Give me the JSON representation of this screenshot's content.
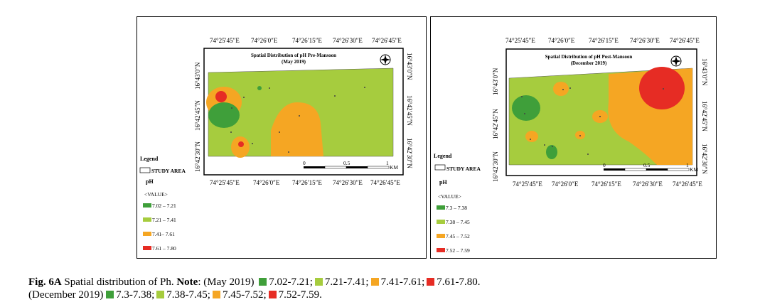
{
  "colors": {
    "dark_green": "#3f9f3a",
    "light_green": "#a6cc3e",
    "orange": "#f5a623",
    "red": "#e62c24"
  },
  "left_map": {
    "title_line1": "Spatial Distribution of pH Pre-Mansoon",
    "title_line2": "(May 2019)",
    "top_ticks": [
      "74°25′45″E",
      "74°26′0″E",
      "74°26′15″E",
      "74°26′30″E",
      "74°26′45″E"
    ],
    "bottom_ticks": [
      "74°25′45″E",
      "74°26′0″E",
      "74°26′15″E",
      "74°26′30″E",
      "74°26′45″E"
    ],
    "left_ticks": [
      "16°43′0″N",
      "16°42′45″N",
      "16°42′30″N"
    ],
    "right_ticks": [
      "16°43′0″N",
      "16°42′45″N",
      "16°42′30″N"
    ],
    "scale_labels": [
      "0",
      "0.5",
      "1",
      "KM"
    ],
    "legend": {
      "title": "Legend",
      "study_area": "STUDY AREA",
      "variable": "pH",
      "value_label": "<VALUE>",
      "classes": [
        {
          "label": "7.02 – 7.21",
          "color": "#3f9f3a"
        },
        {
          "label": "7.21 – 7.41",
          "color": "#a6cc3e"
        },
        {
          "label": "7.41– 7.61",
          "color": "#f5a623"
        },
        {
          "label": "7.61 – 7.80",
          "color": "#e62c24"
        }
      ]
    }
  },
  "right_map": {
    "title_line1": "Spatial Distribution of pH Post-Mansoon",
    "title_line2": "(December 2019)",
    "top_ticks": [
      "74°25′45″E",
      "74°26′0″E",
      "74°26′15″E",
      "74°26′30″E",
      "74°26′45″E"
    ],
    "bottom_ticks": [
      "74°25′45″E",
      "74°26′0″E",
      "74°26′15″E",
      "74°26′30″E",
      "74°26′45″E"
    ],
    "left_ticks": [
      "16°43′0″N",
      "16°42′45″N",
      "16°42′30″N"
    ],
    "right_ticks": [
      "16°43′0″N",
      "16°42′45″N",
      "16°42′30″N"
    ],
    "scale_labels": [
      "0",
      "0.5",
      "1",
      "KM"
    ],
    "legend": {
      "title": "Legend",
      "study_area": "STUDY AREA",
      "variable": "pH",
      "value_label": "<VALUE>",
      "classes": [
        {
          "label": "7.3 – 7.38",
          "color": "#3f9f3a"
        },
        {
          "label": "7.38 – 7.45",
          "color": "#a6cc3e"
        },
        {
          "label": "7.45 – 7.52",
          "color": "#f5a623"
        },
        {
          "label": "7.52 – 7.59",
          "color": "#e62c24"
        }
      ]
    }
  },
  "caption": {
    "fig_label": "Fig. 6A",
    "text": " Spatial distribution of Ph. ",
    "note_label": "Note",
    "line1_prefix": ": (May 2019) ",
    "line1_items": [
      "7.02-7.21;",
      "7.21-7.41;",
      "7.41-7.61;",
      "7.61-7.80."
    ],
    "line2_prefix": "(December 2019) ",
    "line2_items": [
      "7.3-7.38;",
      "7.38-7.45;",
      "7.45-7.52;",
      "7.52-7.59."
    ]
  }
}
